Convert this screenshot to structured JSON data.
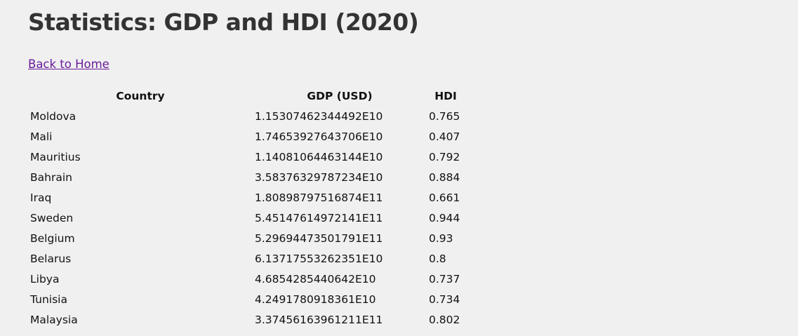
{
  "page": {
    "title": "Statistics: GDP and HDI (2020)",
    "back_link": "Back to Home"
  },
  "table": {
    "headers": [
      "Country",
      "GDP (USD)",
      "HDI"
    ],
    "rows": [
      {
        "country": "Moldova",
        "gdp": "1.15307462344492E10",
        "hdi": "0.765"
      },
      {
        "country": "Mali",
        "gdp": "1.74653927643706E10",
        "hdi": "0.407"
      },
      {
        "country": "Mauritius",
        "gdp": "1.14081064463144E10",
        "hdi": "0.792"
      },
      {
        "country": "Bahrain",
        "gdp": "3.58376329787234E10",
        "hdi": "0.884"
      },
      {
        "country": "Iraq",
        "gdp": "1.80898797516874E11",
        "hdi": "0.661"
      },
      {
        "country": "Sweden",
        "gdp": "5.45147614972141E11",
        "hdi": "0.944"
      },
      {
        "country": "Belgium",
        "gdp": "5.29694473501791E11",
        "hdi": "0.93"
      },
      {
        "country": "Belarus",
        "gdp": "6.13717553262351E10",
        "hdi": "0.8"
      },
      {
        "country": "Libya",
        "gdp": "4.6854285440642E10",
        "hdi": "0.737"
      },
      {
        "country": "Tunisia",
        "gdp": "4.2491780918361E10",
        "hdi": "0.734"
      },
      {
        "country": "Malaysia",
        "gdp": "3.37456163961211E11",
        "hdi": "0.802"
      }
    ]
  }
}
